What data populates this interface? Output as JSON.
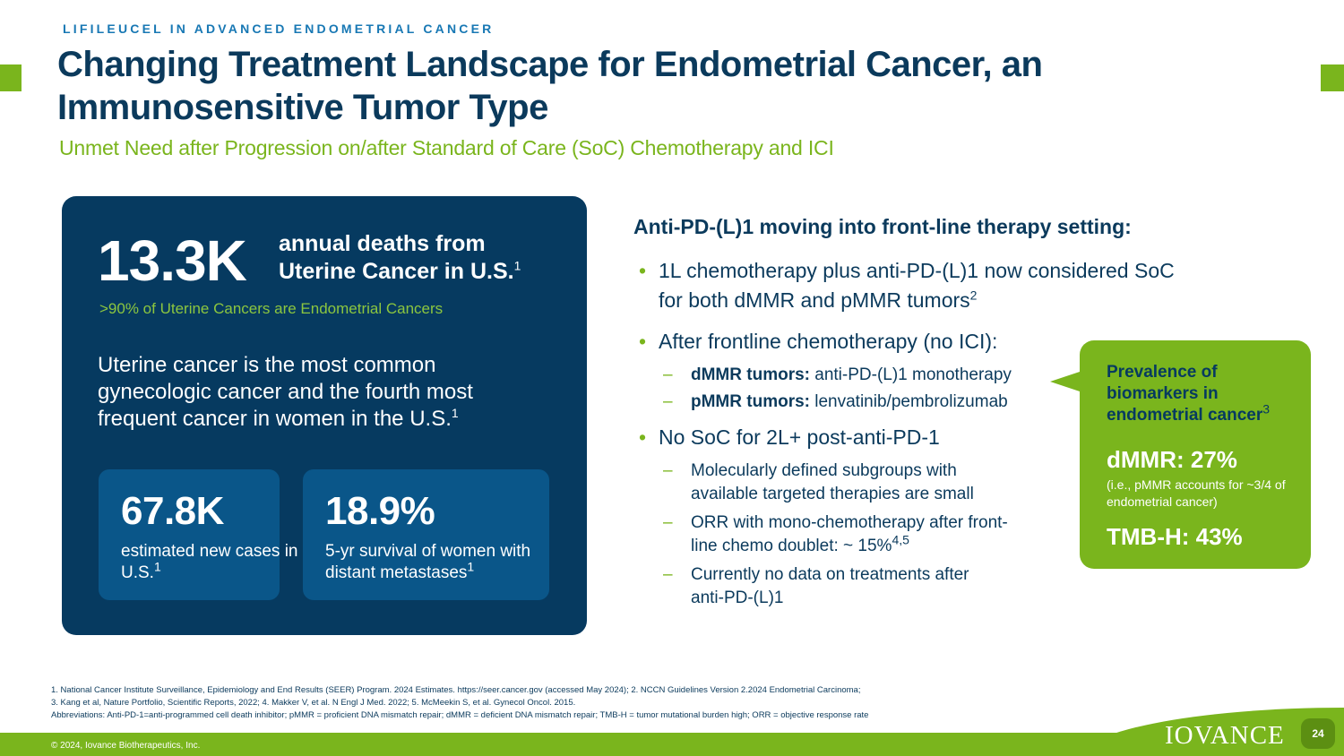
{
  "header": {
    "eyebrow": "LIFILEUCEL IN ADVANCED ENDOMETRIAL CANCER",
    "title": "Changing Treatment Landscape for Endometrial Cancer, an Immunosensitive Tumor Type",
    "subtitle": "Unmet Need after Progression on/after Standard of Care (SoC) Chemotherapy and ICI"
  },
  "left_panel": {
    "big_stat": "13.3K",
    "big_stat_label": "annual deaths from Uterine Cancer in U.S.",
    "big_stat_ref": "1",
    "note": ">90% of Uterine Cancers are Endometrial Cancers",
    "text": "Uterine cancer is the most common gynecologic cancer and the fourth most frequent cancer in women in the U.S.",
    "text_ref": "1",
    "cards": [
      {
        "value": "67.8K",
        "label": "estimated new cases in U.S.",
        "ref": "1"
      },
      {
        "value": "18.9%",
        "label": "5-yr survival of women with distant metastases",
        "ref": "1"
      }
    ]
  },
  "right": {
    "heading": "Anti-PD-(L)1 moving into front-line therapy setting:",
    "b1_text": "1L chemotherapy plus anti-PD-(L)1 now considered SoC for both dMMR and pMMR tumors",
    "b1_ref": "2",
    "b2_text": "After frontline chemotherapy (no ICI):",
    "b2_sub1_bold": "dMMR tumors:",
    "b2_sub1_text": " anti-PD-(L)1 monotherapy",
    "b2_sub2_bold": "pMMR tumors:",
    "b2_sub2_text": " lenvatinib/pembrolizumab",
    "b3_text": "No SoC for 2L+ post-anti-PD-1",
    "b3_sub1": "Molecularly defined subgroups with available targeted therapies are small",
    "b3_sub2": "ORR with mono-chemotherapy after front-line chemo doublet: ~ 15%",
    "b3_sub2_ref": "4,5",
    "b3_sub3": "Currently no data on treatments after anti-PD-(L)1"
  },
  "callout": {
    "title": "Prevalence of biomarkers in endometrial cancer",
    "title_ref": "3",
    "dmmr": "dMMR: 27%",
    "note": "(i.e., pMMR accounts for ~3/4 of endometrial cancer)",
    "tmb": "TMB-H: 43%"
  },
  "footnotes": {
    "line1": "1.  National Cancer Institute Surveillance, Epidemiology and End Results (SEER) Program. 2024 Estimates. https://seer.cancer.gov (accessed May 2024); 2. NCCN Guidelines Version 2.2024 Endometrial Carcinoma;",
    "line2": "3. Kang et al, Nature Portfolio, Scientific Reports, 2022; 4. Makker V, et al. N Engl J Med. 2022; 5. McMeekin S, et al. Gynecol Oncol. 2015.",
    "line3": "Abbreviations:  Anti-PD-1=anti-programmed cell death inhibitor; pMMR = proficient DNA mismatch repair; dMMR = deficient DNA mismatch repair; TMB-H = tumor mutational burden high; ORR = objective response rate"
  },
  "footer": {
    "copyright": "© 2024, Iovance Biotherapeutics, Inc.",
    "logo": "IOVANCE",
    "page_number": "24"
  },
  "colors": {
    "navy": "#063a60",
    "card_blue": "#0a5689",
    "green": "#7ab51d",
    "title_blue": "#0b3a5c",
    "eyebrow_blue": "#1878b4"
  }
}
